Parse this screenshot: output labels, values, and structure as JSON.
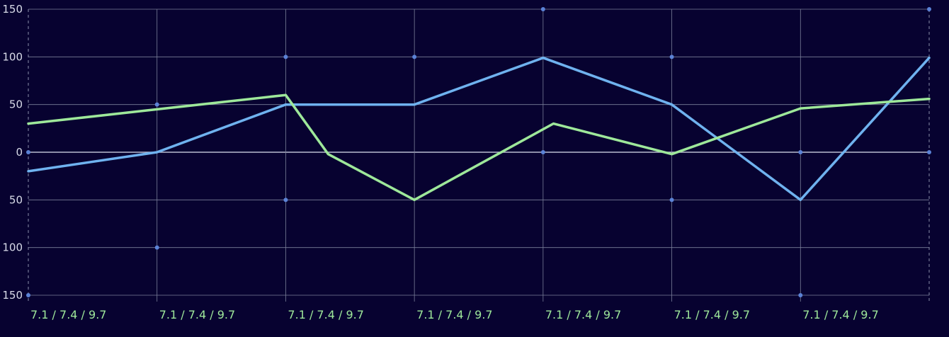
{
  "chart_data": {
    "type": "line",
    "title": "",
    "xlabel": "",
    "ylabel": "",
    "x_tick_labels": [
      "7.1 / 7.4 / 9.7",
      "7.1 / 7.4 / 9.7",
      "7.1 / 7.4 / 9.7",
      "7.1 / 7.4 / 9.7",
      "7.1 / 7.4 / 9.7",
      "7.1 / 7.4 / 9.7",
      "7.1 / 7.4 / 9.7"
    ],
    "y_tick_values": [
      150,
      100,
      50,
      0,
      -50,
      -100,
      -150
    ],
    "y_tick_labels": [
      "150",
      "100",
      "50",
      "0",
      "50",
      "100",
      "150"
    ],
    "ylim": [
      -150,
      150
    ],
    "x_range": [
      0,
      7
    ],
    "grid": true,
    "series": [
      {
        "color": "#6fb2ef",
        "x": [
          0,
          1,
          2,
          3,
          4,
          5,
          6,
          7
        ],
        "values": [
          -20,
          0,
          50,
          50,
          99,
          50,
          -50,
          99
        ]
      },
      {
        "color": "#9ee89a",
        "x": [
          0,
          1,
          2,
          2.33,
          3,
          4.08,
          5,
          6,
          7
        ],
        "values": [
          30,
          45,
          60,
          -2,
          -50,
          30,
          -2,
          46,
          56
        ]
      }
    ],
    "markers": {
      "color": "#5b82d6",
      "points": [
        [
          0,
          0
        ],
        [
          0,
          -150
        ],
        [
          1,
          50
        ],
        [
          1,
          -100
        ],
        [
          2,
          100
        ],
        [
          2,
          -50
        ],
        [
          3,
          100
        ],
        [
          4,
          150
        ],
        [
          4,
          0
        ],
        [
          5,
          100
        ],
        [
          5,
          -50
        ],
        [
          6,
          0
        ],
        [
          6,
          -150
        ],
        [
          7,
          150
        ],
        [
          7,
          0
        ]
      ]
    },
    "colors": {
      "background": "#070230",
      "grid": "#7a7f99",
      "zero_line": "#b9bdd0",
      "x_tick_text": "#9ee89a",
      "y_tick_text": "#d8dbe8"
    }
  }
}
